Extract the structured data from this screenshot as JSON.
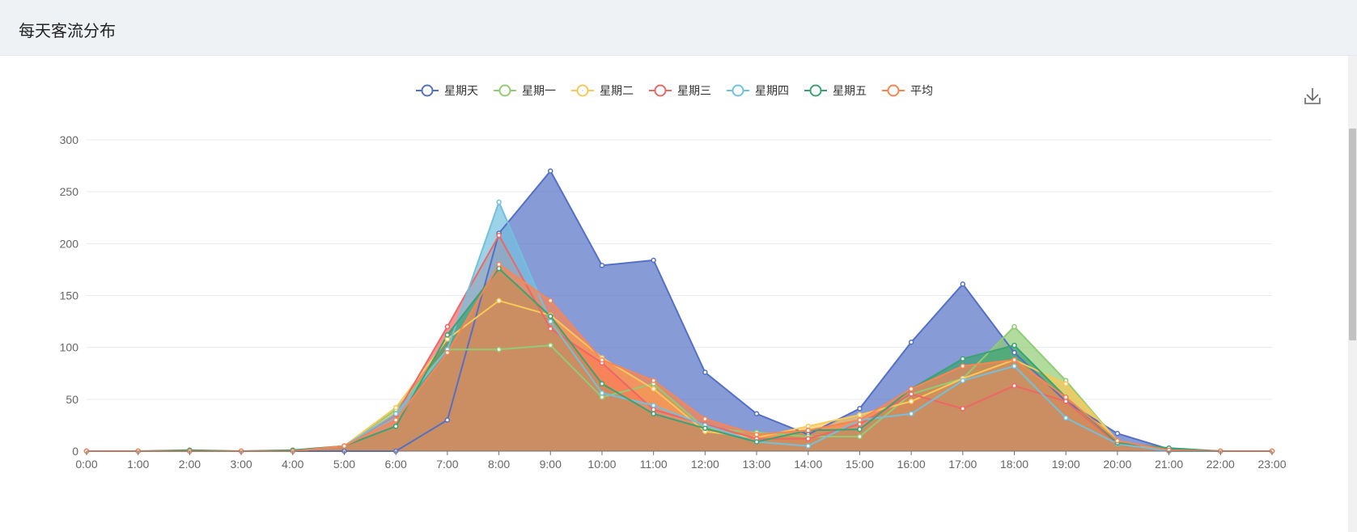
{
  "header": {
    "title": "每天客流分布"
  },
  "toolbar": {
    "download_icon": "download-icon"
  },
  "chart_data": {
    "type": "area",
    "title": "",
    "xlabel": "",
    "ylabel": "",
    "ylim": [
      0,
      300
    ],
    "yticks": [
      0,
      50,
      100,
      150,
      200,
      250,
      300
    ],
    "grid": true,
    "legend_position": "top-center",
    "categories": [
      "0:00",
      "1:00",
      "2:00",
      "3:00",
      "4:00",
      "5:00",
      "6:00",
      "7:00",
      "8:00",
      "9:00",
      "10:00",
      "11:00",
      "12:00",
      "13:00",
      "14:00",
      "15:00",
      "16:00",
      "17:00",
      "18:00",
      "19:00",
      "20:00",
      "21:00",
      "22:00",
      "23:00"
    ],
    "series": [
      {
        "name": "星期天",
        "color": "#5470c6",
        "values": [
          0,
          0,
          0,
          0,
          0,
          0,
          0,
          30,
          210,
          270,
          179,
          184,
          76,
          36,
          16,
          41,
          105,
          161,
          95,
          48,
          17,
          2,
          0,
          0
        ]
      },
      {
        "name": "星期一",
        "color": "#91cc75",
        "values": [
          0,
          0,
          0,
          0,
          0,
          5,
          40,
          98,
          98,
          102,
          52,
          65,
          22,
          18,
          14,
          14,
          55,
          70,
          120,
          68,
          10,
          0,
          0,
          0
        ]
      },
      {
        "name": "星期二",
        "color": "#fac858",
        "values": [
          0,
          0,
          0,
          0,
          0,
          5,
          42,
          108,
          145,
          131,
          90,
          60,
          19,
          13,
          24,
          35,
          48,
          70,
          88,
          65,
          10,
          0,
          0,
          0
        ]
      },
      {
        "name": "星期三",
        "color": "#ee6666",
        "values": [
          0,
          0,
          0,
          0,
          0,
          5,
          35,
          120,
          208,
          118,
          85,
          40,
          26,
          12,
          12,
          26,
          55,
          41,
          63,
          48,
          7,
          0,
          0,
          0
        ]
      },
      {
        "name": "星期四",
        "color": "#73c0de",
        "values": [
          0,
          0,
          0,
          0,
          0,
          5,
          36,
          98,
          240,
          125,
          56,
          44,
          25,
          9,
          5,
          30,
          36,
          68,
          82,
          32,
          7,
          0,
          0,
          0
        ]
      },
      {
        "name": "星期五",
        "color": "#3ba272",
        "values": [
          0,
          0,
          1,
          0,
          1,
          5,
          24,
          112,
          176,
          130,
          65,
          36,
          22,
          9,
          20,
          21,
          60,
          89,
          102,
          52,
          8,
          3,
          0,
          0
        ]
      },
      {
        "name": "平均",
        "color": "#fc8452",
        "values": [
          0,
          0,
          0,
          0,
          0,
          5,
          30,
          95,
          180,
          145,
          88,
          68,
          31,
          16,
          20,
          30,
          60,
          82,
          88,
          52,
          10,
          1,
          0,
          0
        ]
      }
    ]
  }
}
